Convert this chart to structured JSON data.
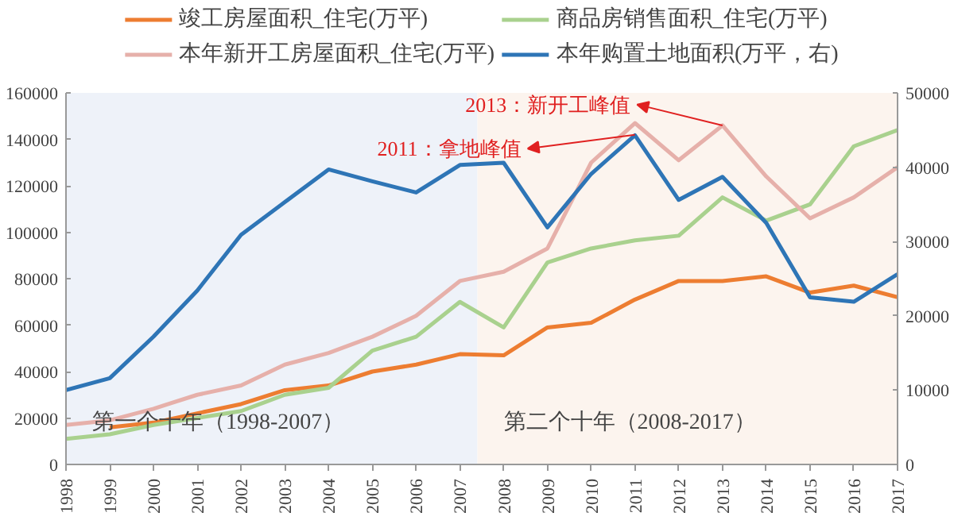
{
  "chart_data": {
    "type": "line",
    "x": [
      1998,
      1999,
      2000,
      2001,
      2002,
      2003,
      2004,
      2005,
      2006,
      2007,
      2008,
      2009,
      2010,
      2011,
      2012,
      2013,
      2014,
      2015,
      2016,
      2017
    ],
    "series": [
      {
        "name": "竣工房屋面积_住宅(万平)",
        "color": "#ed7d31",
        "values": [
          null,
          16000,
          18000,
          22000,
          26000,
          32000,
          34000,
          40000,
          43000,
          47500,
          47000,
          59000,
          61000,
          71000,
          79000,
          79000,
          81000,
          74000,
          77000,
          72000
        ]
      },
      {
        "name": "商品房销售面积_住宅(万平)",
        "color": "#a9d18e",
        "values": [
          11000,
          13000,
          17000,
          20000,
          23000,
          30000,
          33000,
          49000,
          55000,
          70000,
          59000,
          87000,
          93000,
          96500,
          98500,
          115000,
          105000,
          112000,
          137000,
          144000
        ]
      },
      {
        "name": "本年新开工房屋面积_住宅(万平)",
        "color": "#e6b0aa",
        "values": [
          17000,
          19000,
          24000,
          30000,
          34000,
          43000,
          48000,
          55000,
          64000,
          79000,
          83000,
          93000,
          130000,
          147000,
          131000,
          146000,
          124000,
          106000,
          115000,
          128000
        ]
      },
      {
        "name": "本年购置土地面积(万平，右)",
        "color": "#2e75b6",
        "axis": "y2",
        "values": [
          10000,
          11600,
          17200,
          23400,
          30900,
          35300,
          39700,
          38100,
          36600,
          40300,
          40600,
          31900,
          39100,
          44300,
          35600,
          38700,
          32500,
          22500,
          21900,
          25600
        ]
      }
    ],
    "xlim": [
      1998,
      2017
    ],
    "xticks": [
      1998,
      1999,
      2000,
      2001,
      2002,
      2003,
      2004,
      2005,
      2006,
      2007,
      2008,
      2009,
      2010,
      2011,
      2012,
      2013,
      2014,
      2015,
      2016,
      2017
    ],
    "ylim": [
      0,
      160000
    ],
    "yticks": [
      0,
      20000,
      40000,
      60000,
      80000,
      100000,
      120000,
      140000,
      160000
    ],
    "y2lim": [
      0,
      50000
    ],
    "y2ticks": [
      0,
      10000,
      20000,
      30000,
      40000,
      50000
    ],
    "bands": [
      {
        "axis": "x",
        "from": 1998,
        "to": 2007.4,
        "label": "第一个十年（1998-2007）",
        "color": "#eef2f9"
      },
      {
        "axis": "x",
        "from": 2007.4,
        "to": 2017,
        "label": "第二个十年（2008-2017）",
        "color": "#fcf4ee"
      }
    ],
    "annotations": [
      {
        "text": "2013：新开工峰值",
        "x": 2013,
        "y": 146000
      },
      {
        "text": "2011：拿地峰值",
        "x": 2011,
        "y": 142000
      }
    ],
    "grid": false,
    "legend": "top",
    "line_style": "solid",
    "marker": "none"
  }
}
